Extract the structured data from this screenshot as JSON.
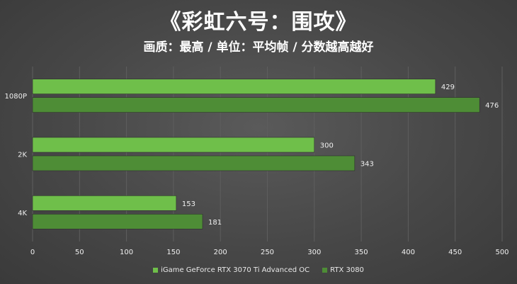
{
  "header": {
    "title": "《彩虹六号：围攻》",
    "subtitle": "画质：最高 / 单位：平均帧 / 分数越高越好"
  },
  "colors": {
    "series1": "#6fbf4a",
    "series2": "#4e8d36",
    "axis_text": "#f0f0f0",
    "grid": "#5e5e5e"
  },
  "chart_data": {
    "type": "bar",
    "orientation": "horizontal",
    "categories": [
      "1080P",
      "2K",
      "4K"
    ],
    "series": [
      {
        "name": "iGame GeForce RTX 3070 Ti Advanced OC",
        "values": [
          429,
          300,
          153
        ]
      },
      {
        "name": "RTX 3080",
        "values": [
          476,
          343,
          181
        ]
      }
    ],
    "xlim": [
      0,
      500
    ],
    "xticks": [
      0,
      50,
      100,
      150,
      200,
      250,
      300,
      350,
      400,
      450,
      500
    ],
    "grid": true,
    "legend_position": "bottom"
  }
}
